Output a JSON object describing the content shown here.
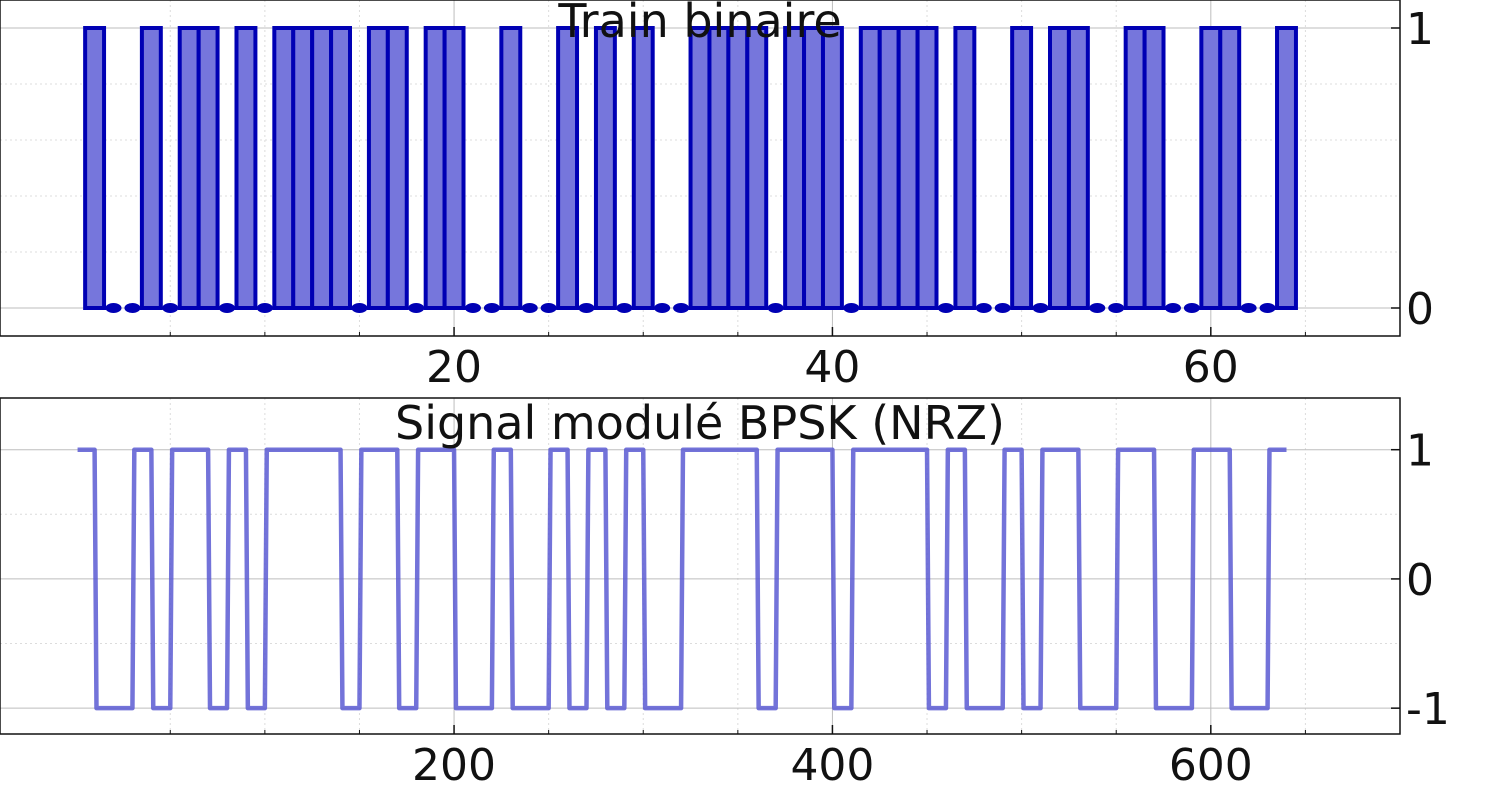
{
  "chart_data": [
    {
      "type": "bar",
      "title": "Train binaire",
      "xlabel": "",
      "ylabel": "",
      "x": [
        1,
        2,
        3,
        4,
        5,
        6,
        7,
        8,
        9,
        10,
        11,
        12,
        13,
        14,
        15,
        16,
        17,
        18,
        19,
        20,
        21,
        22,
        23,
        24,
        25,
        26,
        27,
        28,
        29,
        30,
        31,
        32,
        33,
        34,
        35,
        36,
        37,
        38,
        39,
        40,
        41,
        42,
        43,
        44,
        45,
        46,
        47,
        48,
        49,
        50,
        51,
        52,
        53,
        54,
        55,
        56,
        57,
        58,
        59,
        60,
        61,
        62,
        63,
        64
      ],
      "values": [
        1,
        0,
        0,
        1,
        0,
        1,
        1,
        0,
        1,
        0,
        1,
        1,
        1,
        1,
        0,
        1,
        1,
        0,
        1,
        1,
        0,
        0,
        1,
        0,
        0,
        1,
        0,
        1,
        0,
        1,
        0,
        0,
        1,
        1,
        1,
        1,
        0,
        1,
        1,
        1,
        0,
        1,
        1,
        1,
        1,
        0,
        1,
        0,
        0,
        1,
        0,
        1,
        1,
        0,
        0,
        1,
        1,
        0,
        0,
        1,
        1,
        0,
        0,
        1
      ],
      "xlim": [
        -4,
        70
      ],
      "ylim": [
        -0.1,
        1.1
      ],
      "x_ticks": [
        20,
        40,
        60
      ],
      "y_ticks": [
        0,
        1
      ],
      "y_axis_side": "right",
      "grid": true,
      "color": "#0000b4"
    },
    {
      "type": "line",
      "title": "Signal modulé BPSK (NRZ)",
      "xlabel": "",
      "ylabel": "",
      "samples_per_bit": 10,
      "x_range": [
        1,
        640
      ],
      "levels": "1 → 1, 0 → -1",
      "xlim": [
        -40,
        700
      ],
      "ylim": [
        -1.2,
        1.4
      ],
      "x_ticks": [
        200,
        400,
        600
      ],
      "y_ticks": [
        -1,
        0,
        1
      ],
      "y_axis_side": "right",
      "grid": true,
      "color": "#5a5ad2"
    }
  ]
}
